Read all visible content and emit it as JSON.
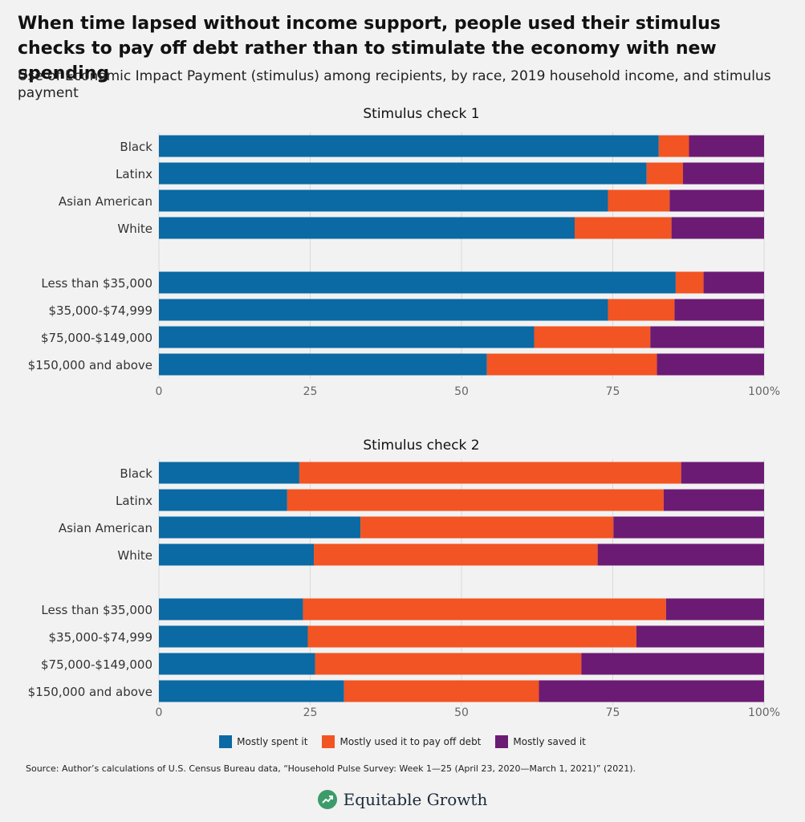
{
  "headline": "When time lapsed without income support, people used their stimulus checks to pay off debt rather than to stimulate the economy with new spending",
  "subtitle": "Use of Economic Impact Payment (stimulus) among recipients, by race, 2019 household income, and stimulus payment",
  "legend": [
    {
      "label": "Mostly spent it",
      "color": "#0b69a3"
    },
    {
      "label": "Mostly used it to pay off debt",
      "color": "#f25423"
    },
    {
      "label": "Mostly saved it",
      "color": "#6b1b73"
    }
  ],
  "source": "Source: Author’s calculations of U.S. Census Bureau data, “Household Pulse Survey: Week 1—25 (April 23, 2020—March 1, 2021)” (2021).",
  "brand": "Equitable Growth",
  "chart_data": [
    {
      "type": "bar",
      "orientation": "horizontal",
      "stacked": true,
      "title": "Stimulus check 1",
      "categories": [
        "Black",
        "Latinx",
        "Asian American",
        "White",
        "Less than $35,000",
        "$35,000-$74,999",
        "$75,000-$149,000",
        "$150,000 and above"
      ],
      "series": [
        {
          "name": "Mostly spent it",
          "values": [
            82.6,
            80.6,
            74.2,
            68.7,
            85.4,
            74.2,
            62.0,
            54.2
          ]
        },
        {
          "name": "Mostly used it to pay off debt",
          "values": [
            5.0,
            6.0,
            10.2,
            16.0,
            4.6,
            11.0,
            19.2,
            28.1
          ]
        },
        {
          "name": "Mostly saved it",
          "values": [
            12.4,
            13.4,
            15.6,
            15.3,
            10.0,
            14.8,
            18.8,
            17.7
          ]
        }
      ],
      "xticks": [
        "0",
        "25",
        "50",
        "75",
        "100%"
      ],
      "xlim": [
        0,
        100
      ],
      "grid": true
    },
    {
      "type": "bar",
      "orientation": "horizontal",
      "stacked": true,
      "title": "Stimulus check 2",
      "categories": [
        "Black",
        "Latinx",
        "Asian American",
        "White",
        "Less than $35,000",
        "$35,000-$74,999",
        "$75,000-$149,000",
        "$150,000 and above"
      ],
      "series": [
        {
          "name": "Mostly spent it",
          "values": [
            23.2,
            21.2,
            33.3,
            25.6,
            23.8,
            24.6,
            25.8,
            30.6
          ]
        },
        {
          "name": "Mostly used it to pay off debt",
          "values": [
            63.1,
            62.2,
            41.8,
            46.9,
            60.0,
            54.3,
            44.0,
            32.2
          ]
        },
        {
          "name": "Mostly saved it",
          "values": [
            13.7,
            16.6,
            24.9,
            27.5,
            16.2,
            21.1,
            30.2,
            37.2
          ]
        }
      ],
      "xticks": [
        "0",
        "25",
        "50",
        "75",
        "100%"
      ],
      "xlim": [
        0,
        100
      ],
      "grid": true
    }
  ]
}
